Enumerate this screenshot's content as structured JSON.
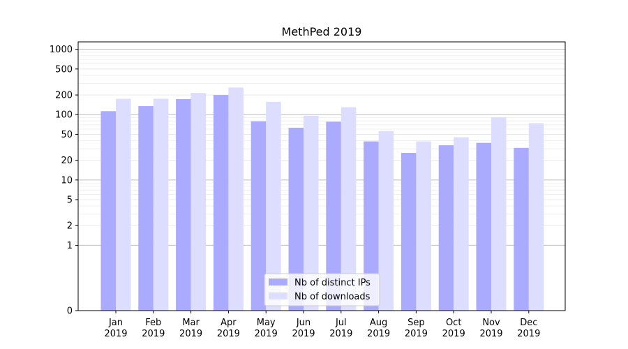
{
  "chart_data": {
    "type": "bar",
    "title": "MethPed 2019",
    "xlabel": "",
    "ylabel": "",
    "scale": "symlog",
    "categories": [
      [
        "Jan",
        "2019"
      ],
      [
        "Feb",
        "2019"
      ],
      [
        "Mar",
        "2019"
      ],
      [
        "Apr",
        "2019"
      ],
      [
        "May",
        "2019"
      ],
      [
        "Jun",
        "2019"
      ],
      [
        "Jul",
        "2019"
      ],
      [
        "Aug",
        "2019"
      ],
      [
        "Sep",
        "2019"
      ],
      [
        "Oct",
        "2019"
      ],
      [
        "Nov",
        "2019"
      ],
      [
        "Dec",
        "2019"
      ]
    ],
    "series": [
      {
        "name": "Nb of distinct IPs",
        "color": "#aaaaff",
        "values": [
          113,
          135,
          173,
          200,
          79,
          63,
          78,
          39,
          26,
          34,
          37,
          31
        ]
      },
      {
        "name": "Nb of downloads",
        "color": "#ddddff",
        "values": [
          175,
          175,
          215,
          260,
          157,
          96,
          130,
          56,
          39,
          45,
          91,
          74
        ]
      }
    ],
    "yticks": [
      0,
      1,
      2,
      5,
      10,
      20,
      50,
      100,
      200,
      500,
      1000
    ],
    "ylim": [
      0,
      1300
    ],
    "grid": true,
    "legend_position": "lower-center"
  }
}
